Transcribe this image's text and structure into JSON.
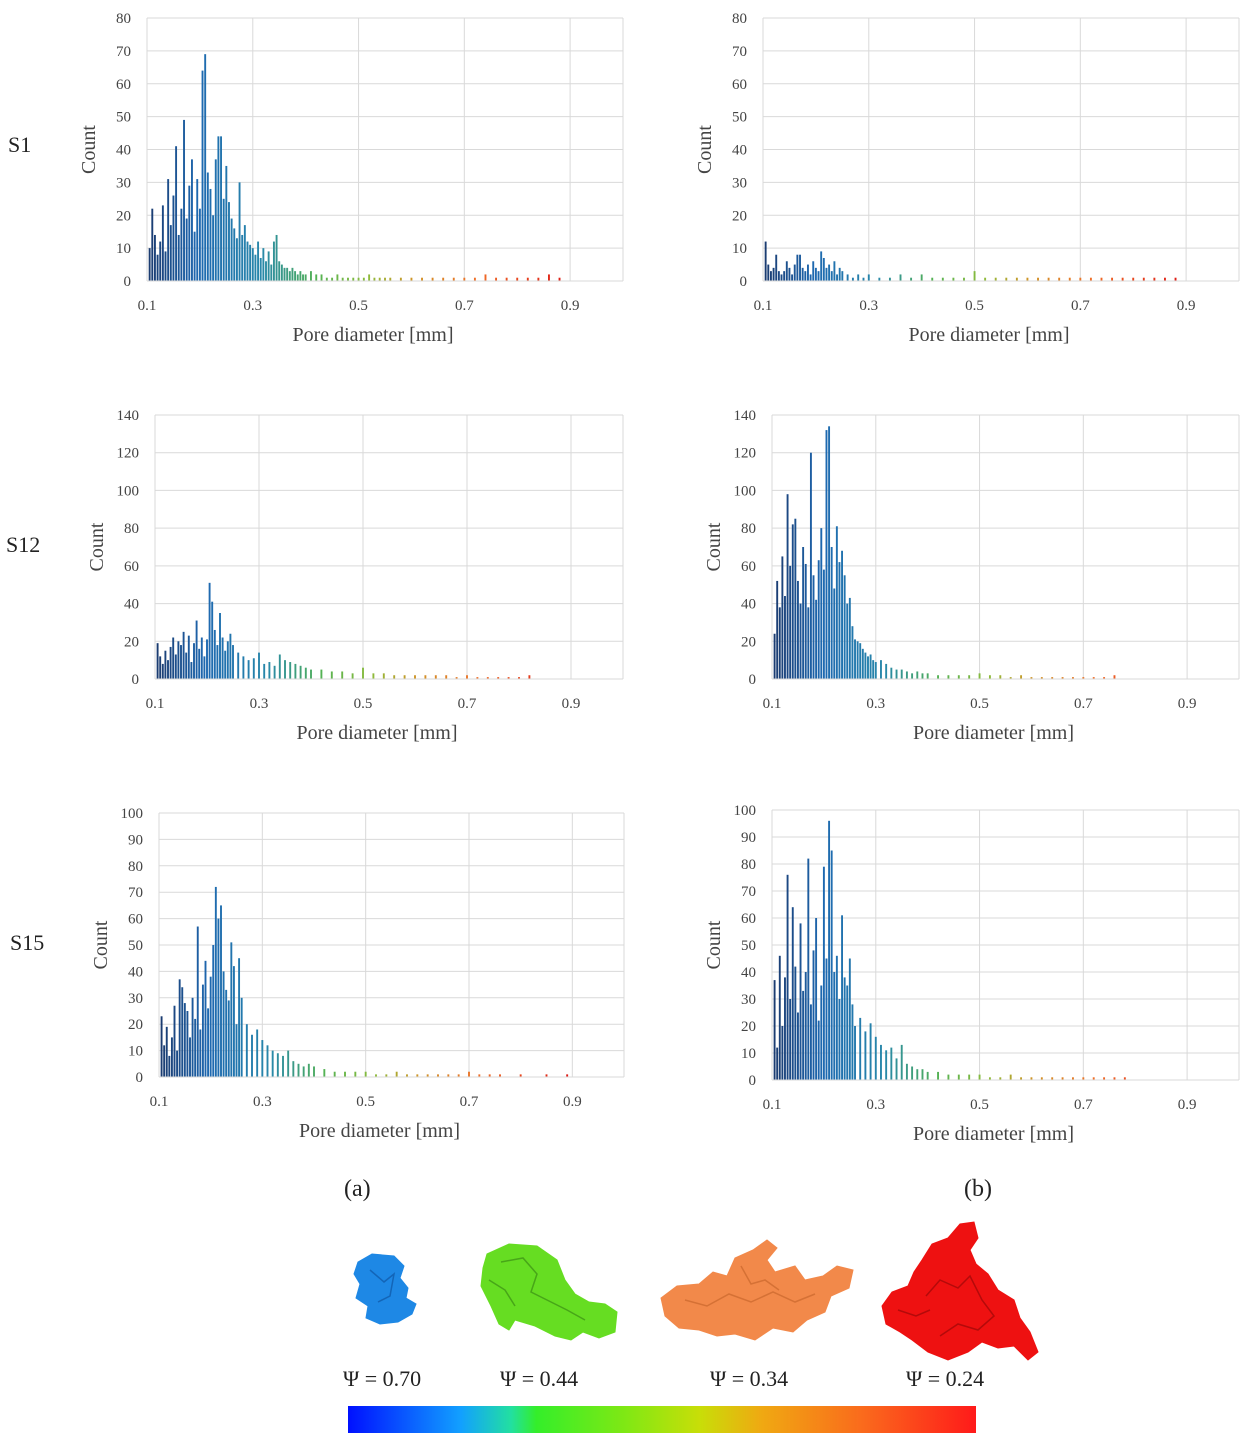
{
  "figure": {
    "rows": [
      "S1",
      "S12",
      "S15"
    ],
    "panel_labels": [
      "(a)",
      "(b)"
    ],
    "shape_labels": [
      "Ψ = 0.70",
      "Ψ = 0.44",
      "Ψ = 0.34",
      "Ψ = 0.24"
    ],
    "shape_colors": [
      "#1e88e5",
      "#66dd22",
      "#f2894a",
      "#ee1111"
    ],
    "colorbar": [
      "#0010ff",
      "#12a0ff",
      "#34ee2a",
      "#c8de08",
      "#f0a812",
      "#fa6a1c",
      "#ff1a1a"
    ]
  },
  "chart_data": [
    {
      "type": "bar",
      "row": "S1",
      "panel": "(a)",
      "xlabel": "Pore diameter  [mm]",
      "ylabel": "Count",
      "xlim": [
        0.1,
        1.0
      ],
      "ylim": [
        0,
        80
      ],
      "xticks": [
        "0.1",
        "0.3",
        "0.5",
        "0.7",
        "0.9"
      ],
      "yticks": [
        "0",
        "10",
        "20",
        "30",
        "40",
        "50",
        "60",
        "70",
        "80"
      ],
      "x": [
        0.105,
        0.11,
        0.115,
        0.12,
        0.125,
        0.13,
        0.135,
        0.14,
        0.145,
        0.15,
        0.155,
        0.16,
        0.165,
        0.17,
        0.175,
        0.18,
        0.185,
        0.19,
        0.195,
        0.2,
        0.205,
        0.21,
        0.215,
        0.22,
        0.225,
        0.23,
        0.235,
        0.24,
        0.245,
        0.25,
        0.255,
        0.26,
        0.265,
        0.27,
        0.275,
        0.28,
        0.285,
        0.29,
        0.295,
        0.3,
        0.305,
        0.31,
        0.315,
        0.32,
        0.325,
        0.33,
        0.335,
        0.34,
        0.345,
        0.35,
        0.355,
        0.36,
        0.365,
        0.37,
        0.375,
        0.38,
        0.385,
        0.39,
        0.395,
        0.4,
        0.41,
        0.42,
        0.43,
        0.44,
        0.45,
        0.46,
        0.47,
        0.48,
        0.49,
        0.5,
        0.51,
        0.52,
        0.53,
        0.54,
        0.55,
        0.56,
        0.58,
        0.6,
        0.62,
        0.64,
        0.66,
        0.68,
        0.7,
        0.72,
        0.74,
        0.76,
        0.78,
        0.8,
        0.82,
        0.84,
        0.86,
        0.88
      ],
      "values": [
        10,
        22,
        14,
        8,
        12,
        23,
        9,
        31,
        17,
        26,
        41,
        14,
        22,
        49,
        19,
        29,
        37,
        15,
        31,
        22,
        64,
        69,
        33,
        28,
        20,
        37,
        44,
        44,
        25,
        35,
        24,
        19,
        16,
        13,
        30,
        14,
        17,
        12,
        11,
        10,
        8,
        12,
        7,
        10,
        6,
        9,
        5,
        12,
        14,
        6,
        5,
        4,
        4,
        3,
        4,
        3,
        2,
        3,
        2,
        2,
        3,
        2,
        2,
        1,
        1,
        2,
        1,
        1,
        1,
        1,
        1,
        2,
        1,
        1,
        1,
        1,
        1,
        1,
        1,
        1,
        1,
        1,
        1,
        1,
        2,
        1,
        1,
        1,
        1,
        1,
        2,
        1
      ]
    },
    {
      "type": "bar",
      "row": "S1",
      "panel": "(b)",
      "xlabel": "Pore diameter  [mm]",
      "ylabel": "Count",
      "xlim": [
        0.1,
        1.0
      ],
      "ylim": [
        0,
        80
      ],
      "xticks": [
        "0.1",
        "0.3",
        "0.5",
        "0.7",
        "0.9"
      ],
      "yticks": [
        "0",
        "10",
        "20",
        "30",
        "40",
        "50",
        "60",
        "70",
        "80"
      ],
      "x": [
        0.105,
        0.11,
        0.115,
        0.12,
        0.125,
        0.13,
        0.135,
        0.14,
        0.145,
        0.15,
        0.155,
        0.16,
        0.165,
        0.17,
        0.175,
        0.18,
        0.185,
        0.19,
        0.195,
        0.2,
        0.205,
        0.21,
        0.215,
        0.22,
        0.225,
        0.23,
        0.235,
        0.24,
        0.245,
        0.25,
        0.26,
        0.27,
        0.28,
        0.29,
        0.3,
        0.32,
        0.34,
        0.36,
        0.38,
        0.4,
        0.42,
        0.44,
        0.46,
        0.48,
        0.5,
        0.52,
        0.54,
        0.56,
        0.58,
        0.6,
        0.62,
        0.64,
        0.66,
        0.68,
        0.7,
        0.72,
        0.74,
        0.76,
        0.78,
        0.8,
        0.82,
        0.84,
        0.86,
        0.88
      ],
      "values": [
        12,
        5,
        3,
        4,
        8,
        3,
        2,
        3,
        6,
        4,
        2,
        5,
        8,
        8,
        4,
        3,
        5,
        2,
        6,
        4,
        3,
        9,
        7,
        4,
        5,
        3,
        6,
        2,
        4,
        3,
        2,
        1,
        2,
        1,
        2,
        1,
        1,
        2,
        1,
        2,
        1,
        1,
        1,
        1,
        3,
        1,
        1,
        1,
        1,
        1,
        1,
        1,
        1,
        1,
        1,
        1,
        1,
        1,
        1,
        1,
        1,
        1,
        1,
        1
      ]
    },
    {
      "type": "bar",
      "row": "S12",
      "panel": "(a)",
      "xlabel": "Pore diameter  [mm]",
      "ylabel": "Count",
      "xlim": [
        0.1,
        1.0
      ],
      "ylim": [
        0,
        140
      ],
      "xticks": [
        "0.1",
        "0.3",
        "0.5",
        "0.7",
        "0.9"
      ],
      "yticks": [
        "0",
        "20",
        "40",
        "60",
        "80",
        "100",
        "120",
        "140"
      ],
      "x": [
        0.105,
        0.11,
        0.115,
        0.12,
        0.125,
        0.13,
        0.135,
        0.14,
        0.145,
        0.15,
        0.155,
        0.16,
        0.165,
        0.17,
        0.175,
        0.18,
        0.185,
        0.19,
        0.195,
        0.2,
        0.205,
        0.21,
        0.215,
        0.22,
        0.225,
        0.23,
        0.235,
        0.24,
        0.245,
        0.25,
        0.26,
        0.27,
        0.28,
        0.29,
        0.3,
        0.31,
        0.32,
        0.33,
        0.34,
        0.35,
        0.36,
        0.37,
        0.38,
        0.39,
        0.4,
        0.42,
        0.44,
        0.46,
        0.48,
        0.5,
        0.52,
        0.54,
        0.56,
        0.58,
        0.6,
        0.62,
        0.64,
        0.66,
        0.68,
        0.7,
        0.72,
        0.74,
        0.76,
        0.78,
        0.8,
        0.82
      ],
      "values": [
        19,
        12,
        8,
        15,
        10,
        17,
        22,
        13,
        20,
        18,
        25,
        14,
        23,
        9,
        19,
        31,
        16,
        22,
        12,
        21,
        51,
        41,
        26,
        18,
        35,
        22,
        15,
        20,
        24,
        18,
        14,
        12,
        10,
        11,
        14,
        8,
        9,
        7,
        13,
        10,
        9,
        8,
        7,
        6,
        5,
        5,
        4,
        4,
        3,
        6,
        3,
        3,
        2,
        2,
        2,
        2,
        2,
        2,
        1,
        2,
        1,
        1,
        1,
        1,
        1,
        2
      ]
    },
    {
      "type": "bar",
      "row": "S12",
      "panel": "(b)",
      "xlabel": "Pore diameter  [mm]",
      "ylabel": "Count",
      "xlim": [
        0.1,
        1.0
      ],
      "ylim": [
        0,
        140
      ],
      "xticks": [
        "0.1",
        "0.3",
        "0.5",
        "0.7",
        "0.9"
      ],
      "yticks": [
        "0",
        "20",
        "40",
        "60",
        "80",
        "100",
        "120",
        "140"
      ],
      "x": [
        0.105,
        0.11,
        0.115,
        0.12,
        0.125,
        0.13,
        0.135,
        0.14,
        0.145,
        0.15,
        0.155,
        0.16,
        0.165,
        0.17,
        0.175,
        0.18,
        0.185,
        0.19,
        0.195,
        0.2,
        0.205,
        0.21,
        0.215,
        0.22,
        0.225,
        0.23,
        0.235,
        0.24,
        0.245,
        0.25,
        0.255,
        0.26,
        0.265,
        0.27,
        0.275,
        0.28,
        0.285,
        0.29,
        0.295,
        0.3,
        0.31,
        0.32,
        0.33,
        0.34,
        0.35,
        0.36,
        0.37,
        0.38,
        0.39,
        0.4,
        0.42,
        0.44,
        0.46,
        0.48,
        0.5,
        0.52,
        0.54,
        0.56,
        0.58,
        0.6,
        0.62,
        0.64,
        0.66,
        0.68,
        0.7,
        0.72,
        0.74,
        0.76
      ],
      "values": [
        24,
        52,
        38,
        65,
        44,
        98,
        60,
        82,
        85,
        52,
        40,
        70,
        61,
        38,
        120,
        55,
        42,
        63,
        80,
        58,
        132,
        134,
        70,
        48,
        81,
        62,
        68,
        55,
        40,
        43,
        28,
        21,
        20,
        19,
        16,
        14,
        12,
        13,
        10,
        9,
        10,
        8,
        6,
        5,
        5,
        4,
        3,
        4,
        3,
        3,
        2,
        2,
        2,
        2,
        3,
        2,
        2,
        1,
        2,
        1,
        1,
        1,
        1,
        1,
        1,
        1,
        1,
        2
      ]
    },
    {
      "type": "bar",
      "row": "S15",
      "panel": "(a)",
      "xlabel": "Pore diameter  [mm]",
      "ylabel": "Count",
      "xlim": [
        0.1,
        1.0
      ],
      "ylim": [
        0,
        100
      ],
      "xticks": [
        "0.1",
        "0.3",
        "0.5",
        "0.7",
        "0.9"
      ],
      "yticks": [
        "0",
        "10",
        "20",
        "30",
        "40",
        "50",
        "60",
        "70",
        "80",
        "90",
        "100"
      ],
      "x": [
        0.105,
        0.11,
        0.115,
        0.12,
        0.125,
        0.13,
        0.135,
        0.14,
        0.145,
        0.15,
        0.155,
        0.16,
        0.165,
        0.17,
        0.175,
        0.18,
        0.185,
        0.19,
        0.195,
        0.2,
        0.205,
        0.21,
        0.215,
        0.22,
        0.225,
        0.23,
        0.235,
        0.24,
        0.245,
        0.25,
        0.255,
        0.26,
        0.27,
        0.28,
        0.29,
        0.3,
        0.31,
        0.32,
        0.33,
        0.34,
        0.35,
        0.36,
        0.37,
        0.38,
        0.39,
        0.4,
        0.42,
        0.44,
        0.46,
        0.48,
        0.5,
        0.52,
        0.54,
        0.56,
        0.58,
        0.6,
        0.62,
        0.64,
        0.66,
        0.68,
        0.7,
        0.72,
        0.74,
        0.76,
        0.8,
        0.85,
        0.89
      ],
      "values": [
        23,
        12,
        19,
        8,
        15,
        27,
        10,
        37,
        34,
        28,
        25,
        15,
        30,
        22,
        57,
        18,
        35,
        44,
        26,
        38,
        50,
        72,
        60,
        65,
        40,
        33,
        29,
        51,
        42,
        20,
        45,
        30,
        20,
        16,
        18,
        14,
        12,
        10,
        9,
        8,
        10,
        6,
        5,
        4,
        5,
        4,
        3,
        2,
        2,
        2,
        2,
        1,
        1,
        2,
        1,
        1,
        1,
        1,
        1,
        1,
        2,
        1,
        1,
        1,
        1,
        1,
        1
      ]
    },
    {
      "type": "bar",
      "row": "S15",
      "panel": "(b)",
      "xlabel": "Pore diameter  [mm]",
      "ylabel": "Count",
      "xlim": [
        0.1,
        1.0
      ],
      "ylim": [
        0,
        100
      ],
      "xticks": [
        "0.1",
        "0.3",
        "0.5",
        "0.7",
        "0.9"
      ],
      "yticks": [
        "0",
        "10",
        "20",
        "30",
        "40",
        "50",
        "60",
        "70",
        "80",
        "90",
        "100"
      ],
      "x": [
        0.105,
        0.11,
        0.115,
        0.12,
        0.125,
        0.13,
        0.135,
        0.14,
        0.145,
        0.15,
        0.155,
        0.16,
        0.165,
        0.17,
        0.175,
        0.18,
        0.185,
        0.19,
        0.195,
        0.2,
        0.205,
        0.21,
        0.215,
        0.22,
        0.225,
        0.23,
        0.235,
        0.24,
        0.245,
        0.25,
        0.255,
        0.26,
        0.27,
        0.28,
        0.29,
        0.3,
        0.31,
        0.32,
        0.33,
        0.34,
        0.35,
        0.36,
        0.37,
        0.38,
        0.39,
        0.4,
        0.42,
        0.44,
        0.46,
        0.48,
        0.5,
        0.52,
        0.54,
        0.56,
        0.58,
        0.6,
        0.62,
        0.64,
        0.66,
        0.68,
        0.7,
        0.72,
        0.74,
        0.76,
        0.78
      ],
      "values": [
        37,
        12,
        46,
        20,
        38,
        76,
        30,
        64,
        42,
        25,
        58,
        33,
        40,
        82,
        28,
        48,
        60,
        22,
        35,
        79,
        45,
        96,
        85,
        40,
        46,
        30,
        61,
        38,
        35,
        45,
        28,
        20,
        23,
        18,
        21,
        16,
        13,
        11,
        12,
        8,
        13,
        6,
        5,
        4,
        4,
        3,
        3,
        2,
        2,
        2,
        2,
        1,
        1,
        2,
        1,
        1,
        1,
        1,
        1,
        1,
        1,
        1,
        1,
        1,
        1
      ]
    }
  ]
}
